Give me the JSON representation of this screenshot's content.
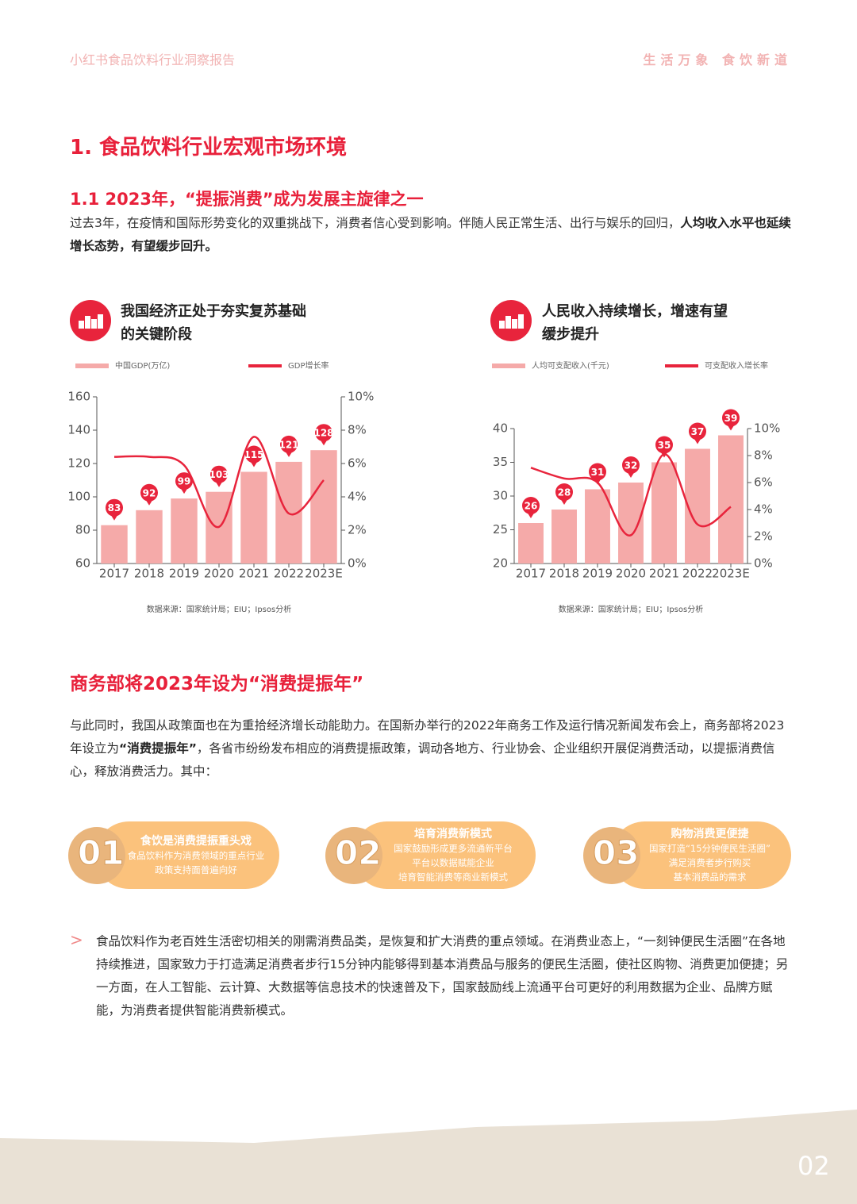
{
  "header": {
    "left": "小红书食品饮料行业洞察报告",
    "right": "生活万象 食饮新道"
  },
  "section_title": "1. 食品饮料行业宏观市场环境",
  "subsection_title": "1.1 2023年，“提振消费”成为发展主旋律之一",
  "intro": [
    "过去3年，在疫情和国际形势变化的双重挑战下，消费者信心受到影响。伴随人民正常生活、出行与娱乐的回归，",
    "人均收入水平也延续增长态势，有望缓步回升。"
  ],
  "chart_data": [
    {
      "type": "bar",
      "title": "我国经济正处于夯实复苏基础的关键阶段",
      "source": "数据来源：国家统计局；EIU；Ipsos分析",
      "categories": [
        "2017",
        "2018",
        "2019",
        "2020",
        "2021",
        "2022",
        "2023E"
      ],
      "series": [
        {
          "name": "中国GDP(万亿)",
          "color": "#f5aaa9",
          "type": "bar",
          "values": [
            83,
            92,
            99,
            103,
            115,
            121,
            128
          ]
        },
        {
          "name": "GDP增长率",
          "color": "#e8243c",
          "type": "line",
          "axis": "y2",
          "values": [
            6.4,
            6.4,
            5.9,
            2.2,
            7.6,
            3.0,
            5.0
          ]
        }
      ],
      "ylim": [
        60,
        160
      ],
      "yticks": [
        60,
        80,
        100,
        120,
        140,
        160
      ],
      "y2lim": [
        0,
        10
      ],
      "y2ticks": [
        {
          "value": 0,
          "label": "0%"
        },
        {
          "value": 2,
          "label": "2%"
        },
        {
          "value": 4,
          "label": "4%"
        },
        {
          "value": 6,
          "label": "6%"
        },
        {
          "value": 8,
          "label": "8%"
        },
        {
          "value": 10,
          "label": "10%"
        }
      ]
    },
    {
      "type": "bar",
      "title": "人民收入持续增长，增速有望缓步提升",
      "source": "数据来源：国家统计局；EIU；Ipsos分析",
      "categories": [
        "2017",
        "2018",
        "2019",
        "2020",
        "2021",
        "2022",
        "2023E"
      ],
      "series": [
        {
          "name": "人均可支配收入(千元)",
          "color": "#f5aaa9",
          "type": "bar",
          "values": [
            26,
            28,
            31,
            32,
            35,
            37,
            39
          ]
        },
        {
          "name": "可支配收入增长率",
          "color": "#e8243c",
          "type": "line",
          "axis": "y2",
          "values": [
            7.1,
            6.3,
            6.0,
            2.1,
            8.1,
            2.9,
            4.2
          ]
        }
      ],
      "ylim": [
        20,
        40
      ],
      "yticks": [
        20,
        25,
        30,
        35,
        40
      ],
      "y2lim": [
        0,
        10
      ],
      "y2ticks": [
        {
          "value": 0,
          "label": "0%"
        },
        {
          "value": 2,
          "label": "2%"
        },
        {
          "value": 4,
          "label": "4%"
        },
        {
          "value": 6,
          "label": "6%"
        },
        {
          "value": 8,
          "label": "8%"
        },
        {
          "value": 10,
          "label": "10%"
        }
      ]
    }
  ],
  "section2_title": "商务部将2023年设为“消费提振年”",
  "para2": [
    "与此同时，我国从政策面也在为重拾经济增长动能助力。在国新办举行的2022年商务工作及运行情况新闻发布会上，商务部将2023年设立为",
    "“消费提振年”",
    "，各省市纷纷发布相应的消费提振政策，调动各地方、行业协会、企业组织开展促消费活动，以提振消费信心，释放消费活力。其中："
  ],
  "cards": [
    {
      "number": "01",
      "title": "食饮是消费提振重头戏",
      "lines": [
        "食品饮料作为消费领域的重点行业",
        "政策支持面普遍向好"
      ]
    },
    {
      "number": "02",
      "title": "培育消费新模式",
      "lines": [
        "国家鼓励形成更多流通新平台",
        "平台以数据赋能企业",
        "培育智能消费等商业新模式"
      ]
    },
    {
      "number": "03",
      "title": "购物消费更便捷",
      "lines": [
        "国家打造“15分钟便民生活圈”",
        "满足消费者步行购买",
        "基本消费品的需求"
      ]
    }
  ],
  "bullet": "食品饮料作为老百姓生活密切相关的刚需消费品类，是恢复和扩大消费的重点领域。在消费业态上，“一刻钟便民生活圈”在各地持续推进，国家致力于打造满足消费者步行15分钟内能够得到基本消费品与服务的便民生活圈，使社区购物、消费更加便捷；另一方面，在人工智能、云计算、大数据等信息技术的快速普及下，国家鼓励线上流通平台可更好的利用数据为企业、品牌方赋能，为消费者提供智能消费新模式。",
  "page_number": "02"
}
